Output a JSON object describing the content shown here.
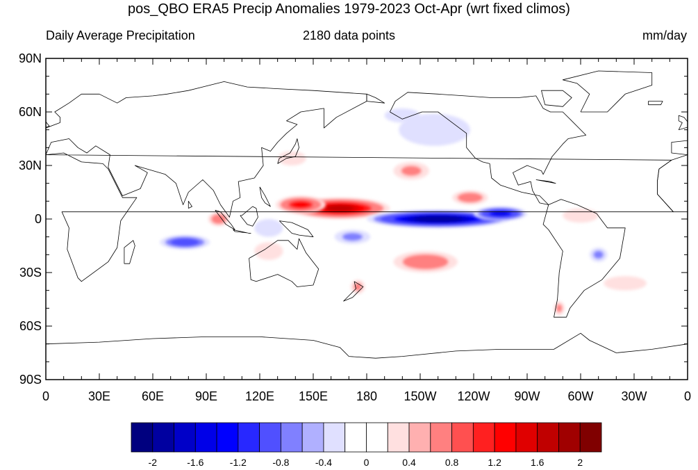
{
  "title": "pos_QBO ERA5 Precip Anomalies 1979-2023 Oct-Apr (wrt fixed climos)",
  "subtitle_left": "Daily Average Precipitation",
  "subtitle_center": "2180 data points",
  "subtitle_right": "mm/day",
  "map": {
    "projection": "cylindrical-equidistant",
    "center_longitude": 180,
    "lat_labels": [
      "90N",
      "60N",
      "30N",
      "0",
      "30S",
      "60S",
      "90S"
    ],
    "lon_labels": [
      "0",
      "30E",
      "60E",
      "90E",
      "120E",
      "150E",
      "180",
      "150W",
      "120W",
      "90W",
      "60W",
      "30W",
      "0"
    ],
    "coastline_color": "#000000"
  },
  "colorbar": {
    "colors": [
      "#00007f",
      "#0000a0",
      "#0000c8",
      "#0000e8",
      "#0000ff",
      "#2828ff",
      "#5050ff",
      "#8080ff",
      "#b0b0ff",
      "#e0e0ff",
      "#ffffff",
      "#ffffff",
      "#ffe0e0",
      "#ffb0b0",
      "#ff8080",
      "#ff5050",
      "#ff2020",
      "#ff0000",
      "#e00000",
      "#c00000",
      "#a00000",
      "#800000"
    ],
    "tick_labels": [
      "-2",
      "-1.6",
      "-1.2",
      "-0.8",
      "-0.4",
      "0",
      "0.4",
      "0.8",
      "1.2",
      "1.6",
      "2"
    ],
    "range": [
      -2,
      2
    ],
    "interval": 0.2
  },
  "anomalies": [
    {
      "name": "west-pacific-wet",
      "value": 1.6,
      "lon": 165,
      "lat": 6,
      "rlon": 28,
      "rlat": 6
    },
    {
      "name": "warm-pool-wet",
      "value": 1.2,
      "lon": 143,
      "lat": 8,
      "rlon": 14,
      "rlat": 5
    },
    {
      "name": "central-pacific-dry",
      "value": -2.0,
      "lon": 220,
      "lat": 0,
      "rlon": 40,
      "rlat": 5
    },
    {
      "name": "east-pacific-dry",
      "value": -1.4,
      "lon": 255,
      "lat": 3,
      "rlon": 15,
      "rlat": 4
    },
    {
      "name": "indian-ocean-dry",
      "value": -1.0,
      "lon": 78,
      "lat": -13,
      "rlon": 14,
      "rlat": 4
    },
    {
      "name": "spcz-wet",
      "value": 0.8,
      "lon": 213,
      "lat": -24,
      "rlon": 18,
      "rlat": 6
    },
    {
      "name": "north-pacific-wet",
      "value": 0.6,
      "lon": 205,
      "lat": 27,
      "rlon": 10,
      "rlat": 5
    },
    {
      "name": "north-pacific-dry",
      "value": -0.4,
      "lon": 218,
      "lat": 50,
      "rlon": 20,
      "rlat": 9
    },
    {
      "name": "itcz-east-wet",
      "value": 0.8,
      "lon": 238,
      "lat": 12,
      "rlon": 10,
      "rlat": 4
    },
    {
      "name": "sumatra-wet",
      "value": 0.8,
      "lon": 97,
      "lat": 0,
      "rlon": 6,
      "rlat": 4
    },
    {
      "name": "brazil-dry",
      "value": -0.6,
      "lon": 310,
      "lat": -20,
      "rlon": 5,
      "rlat": 4
    },
    {
      "name": "south-atlantic-wet",
      "value": 0.4,
      "lon": 325,
      "lat": -36,
      "rlon": 12,
      "rlat": 4
    },
    {
      "name": "amazon-wet",
      "value": 0.4,
      "lon": 300,
      "lat": 2,
      "rlon": 10,
      "rlat": 4
    },
    {
      "name": "maritime-dry",
      "value": -0.4,
      "lon": 125,
      "lat": -5,
      "rlon": 8,
      "rlat": 5
    },
    {
      "name": "japan-wet",
      "value": 0.4,
      "lon": 138,
      "lat": 34,
      "rlon": 8,
      "rlat": 4
    },
    {
      "name": "australia-wet",
      "value": 0.4,
      "lon": 125,
      "lat": -18,
      "rlon": 8,
      "rlat": 5
    },
    {
      "name": "west-pacific-south-dry",
      "value": -0.6,
      "lon": 172,
      "lat": -10,
      "rlon": 10,
      "rlat": 4
    },
    {
      "name": "tasman-wet",
      "value": 0.6,
      "lon": 175,
      "lat": -38,
      "rlon": 4,
      "rlat": 4
    },
    {
      "name": "chile-wet",
      "value": 0.6,
      "lon": 288,
      "lat": -50,
      "rlon": 3,
      "rlat": 4
    },
    {
      "name": "alaska-dry",
      "value": -0.4,
      "lon": 200,
      "lat": 58,
      "rlon": 10,
      "rlat": 4
    }
  ]
}
